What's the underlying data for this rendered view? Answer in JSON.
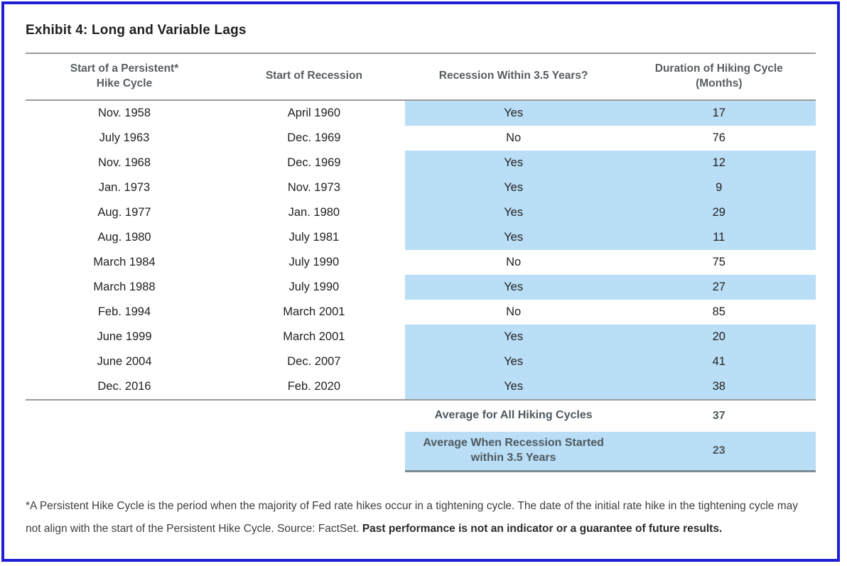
{
  "title": "Exhibit 4: Long and Variable Lags",
  "colors": {
    "frame_blue": "#1e1ed7",
    "highlight_blue": "#b9def6",
    "rule_gray": "#9a9a9a",
    "summary_rule": "#7c8b91",
    "header_text": "#565e62",
    "title_text": "#1f1f1f",
    "body_text": "#212121",
    "summary_text": "#4e5a5f",
    "footnote_text": "#3f3f3f"
  },
  "table": {
    "columns": [
      "Start of a Persistent*\nHike Cycle",
      "Start of Recession",
      "Recession Within 3.5 Years?",
      "Duration of Hiking Cycle\n(Months)"
    ],
    "highlight_value": "Yes",
    "rows": [
      {
        "hike_start": "Nov. 1958",
        "recession_start": "April 1960",
        "recession_within": "Yes",
        "duration_months": "17"
      },
      {
        "hike_start": "July 1963",
        "recession_start": "Dec. 1969",
        "recession_within": "No",
        "duration_months": "76"
      },
      {
        "hike_start": "Nov. 1968",
        "recession_start": "Dec. 1969",
        "recession_within": "Yes",
        "duration_months": "12"
      },
      {
        "hike_start": "Jan. 1973",
        "recession_start": "Nov. 1973",
        "recession_within": "Yes",
        "duration_months": "9"
      },
      {
        "hike_start": "Aug. 1977",
        "recession_start": "Jan. 1980",
        "recession_within": "Yes",
        "duration_months": "29"
      },
      {
        "hike_start": "Aug. 1980",
        "recession_start": "July 1981",
        "recession_within": "Yes",
        "duration_months": "11"
      },
      {
        "hike_start": "March 1984",
        "recession_start": "July 1990",
        "recession_within": "No",
        "duration_months": "75"
      },
      {
        "hike_start": "March 1988",
        "recession_start": "July 1990",
        "recession_within": "Yes",
        "duration_months": "27"
      },
      {
        "hike_start": "Feb. 1994",
        "recession_start": "March 2001",
        "recession_within": "No",
        "duration_months": "85"
      },
      {
        "hike_start": "June 1999",
        "recession_start": "March 2001",
        "recession_within": "Yes",
        "duration_months": "20"
      },
      {
        "hike_start": "June 2004",
        "recession_start": "Dec. 2007",
        "recession_within": "Yes",
        "duration_months": "41"
      },
      {
        "hike_start": "Dec. 2016",
        "recession_start": "Feb. 2020",
        "recession_within": "Yes",
        "duration_months": "38"
      }
    ],
    "summary_rows": [
      {
        "label": "Average for All Hiking Cycles",
        "value": "37",
        "highlighted": false
      },
      {
        "label": "Average When Recession Started\nwithin 3.5 Years",
        "value": "23",
        "highlighted": true
      }
    ]
  },
  "footnote": {
    "normal": "*A Persistent Hike Cycle is the period when the majority of Fed rate hikes occur in a tightening cycle. The date of the initial rate hike in the tightening cycle may not align with the start of the Persistent Hike Cycle. Source: FactSet. ",
    "bold": "Past performance is not an indicator or a guarantee of future results."
  }
}
